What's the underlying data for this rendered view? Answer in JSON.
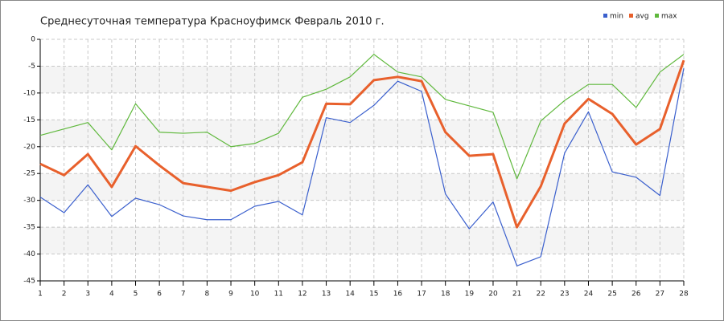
{
  "chart_data": {
    "type": "line",
    "title": "Среднесуточная температура Красноуфимск  Февраль 2010 г.",
    "x": [
      1,
      2,
      3,
      4,
      5,
      6,
      7,
      8,
      9,
      10,
      11,
      12,
      13,
      14,
      15,
      16,
      17,
      18,
      19,
      20,
      21,
      22,
      23,
      24,
      25,
      26,
      27,
      28
    ],
    "xlim": [
      1,
      28
    ],
    "xticks": [
      1,
      2,
      3,
      4,
      5,
      6,
      7,
      8,
      9,
      10,
      11,
      12,
      13,
      14,
      15,
      16,
      17,
      18,
      19,
      20,
      21,
      22,
      23,
      24,
      25,
      26,
      27,
      28
    ],
    "ylim": [
      -45,
      0
    ],
    "yticks": [
      0,
      -5,
      -10,
      -15,
      -20,
      -25,
      -30,
      -35,
      -40,
      -45
    ],
    "grid": true,
    "legend": "top-right",
    "series": [
      {
        "name": "min",
        "color": "#3a5fcd",
        "values": [
          -29.4,
          -32.3,
          -27.1,
          -33.0,
          -29.6,
          -30.8,
          -32.9,
          -33.6,
          -33.6,
          -31.1,
          -30.2,
          -32.7,
          -14.6,
          -15.5,
          -12.3,
          -7.8,
          -9.7,
          -28.8,
          -35.3,
          -30.3,
          -42.2,
          -40.5,
          -21.2,
          -13.5,
          -24.7,
          -25.7,
          -29.1,
          -5.4
        ]
      },
      {
        "name": "avg",
        "color": "#e8602c",
        "values": [
          -23.2,
          -25.3,
          -21.4,
          -27.5,
          -19.9,
          -23.5,
          -26.8,
          -27.5,
          -28.2,
          -26.6,
          -25.3,
          -22.9,
          -12.0,
          -12.1,
          -7.6,
          -7.0,
          -7.8,
          -17.3,
          -21.7,
          -21.4,
          -35.0,
          -27.4,
          -15.7,
          -11.1,
          -13.9,
          -19.6,
          -16.7,
          -3.9
        ]
      },
      {
        "name": "max",
        "color": "#5fb83c",
        "values": [
          -17.9,
          -16.7,
          -15.5,
          -20.6,
          -12.0,
          -17.3,
          -17.5,
          -17.3,
          -20.0,
          -19.4,
          -17.5,
          -10.8,
          -9.3,
          -7.0,
          -2.8,
          -6.1,
          -7.0,
          -11.2,
          -12.4,
          -13.6,
          -26.0,
          -15.2,
          -11.4,
          -8.4,
          -8.4,
          -12.7,
          -6.1,
          -2.8
        ]
      }
    ]
  }
}
